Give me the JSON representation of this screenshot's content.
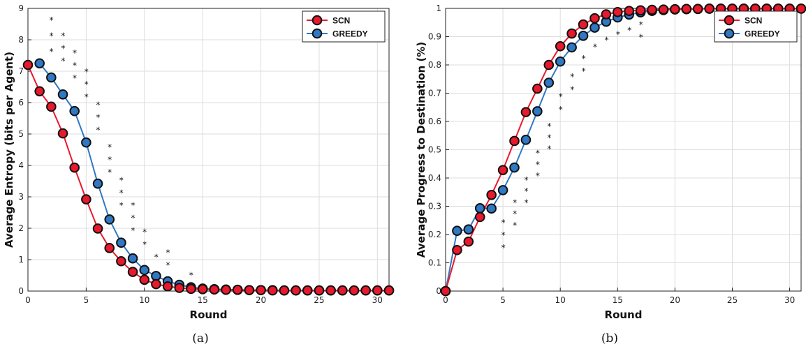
{
  "colors": {
    "scn": "#e8192c",
    "greedy": "#2f78c4",
    "marker_edge": "#111111",
    "grid": "#dddddd"
  },
  "chart_data": [
    {
      "type": "line",
      "panel_label": "(a)",
      "xlabel": "Round",
      "ylabel": "Average Entropy (bits per Agent)",
      "xlim": [
        0,
        31
      ],
      "ylim": [
        0,
        9
      ],
      "xticks": [
        0,
        5,
        10,
        15,
        20,
        25,
        30
      ],
      "yticks": [
        0,
        1,
        2,
        3,
        4,
        5,
        6,
        7,
        8,
        9
      ],
      "grid": true,
      "legend": "top-right",
      "series": [
        {
          "name": "SCN",
          "x": [
            0,
            1,
            2,
            3,
            4,
            5,
            6,
            7,
            8,
            9,
            10,
            11,
            12,
            13,
            14,
            15,
            16,
            17,
            18,
            19,
            20,
            21,
            22,
            23,
            24,
            25,
            26,
            27,
            28,
            29,
            30,
            31
          ],
          "values": [
            7.2,
            6.36,
            5.87,
            5.02,
            3.93,
            2.92,
            1.99,
            1.37,
            0.95,
            0.61,
            0.36,
            0.22,
            0.15,
            0.1,
            0.07,
            0.06,
            0.05,
            0.04,
            0.04,
            0.03,
            0.03,
            0.02,
            0.02,
            0.02,
            0.02,
            0.02,
            0.02,
            0.02,
            0.02,
            0.02,
            0.02,
            0.02
          ]
        },
        {
          "name": "GREEDY",
          "x": [
            1,
            2,
            3,
            4,
            5,
            6,
            7,
            8,
            9,
            10,
            11,
            12,
            13,
            14,
            15,
            16,
            17,
            18,
            19,
            20,
            21,
            22,
            23,
            24,
            25,
            26,
            27,
            28,
            29,
            30,
            31
          ],
          "values": [
            7.25,
            6.8,
            6.26,
            5.73,
            4.73,
            3.42,
            2.28,
            1.54,
            1.04,
            0.67,
            0.48,
            0.31,
            0.2,
            0.12,
            0.08,
            0.06,
            0.05,
            0.04,
            0.03,
            0.03,
            0.03,
            0.02,
            0.02,
            0.02,
            0.02,
            0.02,
            0.02,
            0.02,
            0.02,
            0.02,
            0.02
          ]
        }
      ],
      "annotations": [
        {
          "x": 1,
          "label": "*",
          "stack": [
            8.65,
            8.15,
            7.65
          ]
        },
        {
          "x": 2,
          "label": "*",
          "stack": [
            8.15,
            7.75,
            7.35
          ]
        },
        {
          "x": 3,
          "label": "*",
          "stack": [
            7.6,
            7.2,
            6.8
          ]
        },
        {
          "x": 4,
          "label": "*",
          "stack": [
            7.0,
            6.6,
            6.2
          ]
        },
        {
          "x": 5,
          "label": "*",
          "stack": [
            5.95,
            5.55,
            5.15
          ]
        },
        {
          "x": 6,
          "label": "*",
          "stack": [
            4.6,
            4.2,
            3.8
          ]
        },
        {
          "x": 7,
          "label": "*",
          "stack": [
            3.55,
            3.15,
            2.75
          ]
        },
        {
          "x": 8,
          "label": "*",
          "stack": [
            2.75,
            2.35,
            1.95
          ]
        },
        {
          "x": 9,
          "label": "*",
          "stack": [
            1.9,
            1.5
          ]
        },
        {
          "x": 10,
          "label": "*",
          "stack": [
            1.1
          ]
        },
        {
          "x": 11,
          "label": "*",
          "stack": [
            1.25,
            0.85
          ]
        },
        {
          "x": 13,
          "label": "*",
          "stack": [
            0.52
          ]
        }
      ]
    },
    {
      "type": "line",
      "panel_label": "(b)",
      "xlabel": "Round",
      "ylabel": "Average Progress to Destination (%)",
      "xlim": [
        0,
        31
      ],
      "ylim": [
        0,
        1
      ],
      "xticks": [
        0,
        5,
        10,
        15,
        20,
        25,
        30
      ],
      "yticks": [
        0,
        0.1,
        0.2,
        0.3,
        0.4,
        0.5,
        0.6,
        0.7,
        0.8,
        0.9,
        1
      ],
      "grid": true,
      "legend": "top-right",
      "series": [
        {
          "name": "SCN",
          "x": [
            0,
            1,
            2,
            3,
            4,
            5,
            6,
            7,
            8,
            9,
            10,
            11,
            12,
            13,
            14,
            15,
            16,
            17,
            18,
            19,
            20,
            21,
            22,
            23,
            24,
            25,
            26,
            27,
            28,
            29,
            30,
            31
          ],
          "values": [
            0,
            0.145,
            0.175,
            0.262,
            0.34,
            0.428,
            0.531,
            0.633,
            0.716,
            0.8,
            0.866,
            0.911,
            0.943,
            0.965,
            0.979,
            0.987,
            0.991,
            0.993,
            0.995,
            0.996,
            0.997,
            0.998,
            0.998,
            0.999,
            0.999,
            0.999,
            0.999,
            0.999,
            0.999,
            0.999,
            0.999,
            0.999
          ]
        },
        {
          "name": "GREEDY",
          "x": [
            0,
            1,
            2,
            3,
            4,
            5,
            6,
            7,
            8,
            9,
            10,
            11,
            12,
            13,
            14,
            15,
            16,
            17,
            18,
            19,
            20,
            21,
            22,
            23,
            24,
            25,
            26,
            27,
            28,
            29,
            30,
            31
          ],
          "values": [
            0,
            0.213,
            0.218,
            0.293,
            0.292,
            0.357,
            0.437,
            0.535,
            0.636,
            0.737,
            0.812,
            0.862,
            0.903,
            0.932,
            0.953,
            0.968,
            0.978,
            0.986,
            0.991,
            0.994,
            0.996,
            0.997,
            0.998,
            0.999,
            0.999,
            0.999,
            0.999,
            0.999,
            0.999,
            0.999,
            0.999,
            0.999
          ]
        }
      ],
      "annotations": [
        {
          "x": 4,
          "label": "*",
          "stack": [
            0.245,
            0.2,
            0.155
          ]
        },
        {
          "x": 5,
          "label": "*",
          "stack": [
            0.315,
            0.275,
            0.235
          ]
        },
        {
          "x": 6,
          "label": "*",
          "stack": [
            0.395,
            0.355,
            0.315
          ]
        },
        {
          "x": 7,
          "label": "*",
          "stack": [
            0.49,
            0.45,
            0.41
          ]
        },
        {
          "x": 8,
          "label": "*",
          "stack": [
            0.585,
            0.545,
            0.505
          ]
        },
        {
          "x": 9,
          "label": "*",
          "stack": [
            0.69,
            0.645
          ]
        },
        {
          "x": 10,
          "label": "*",
          "stack": [
            0.76,
            0.715
          ]
        },
        {
          "x": 11,
          "label": "*",
          "stack": [
            0.825,
            0.78
          ]
        },
        {
          "x": 12,
          "label": "*",
          "stack": [
            0.865
          ]
        },
        {
          "x": 13,
          "label": "*",
          "stack": [
            0.89
          ]
        },
        {
          "x": 14,
          "label": "*",
          "stack": [
            0.91
          ]
        },
        {
          "x": 15,
          "label": "*",
          "stack": [
            0.925
          ]
        },
        {
          "x": 16,
          "label": "*",
          "stack": [
            0.945,
            0.9
          ]
        }
      ]
    }
  ]
}
